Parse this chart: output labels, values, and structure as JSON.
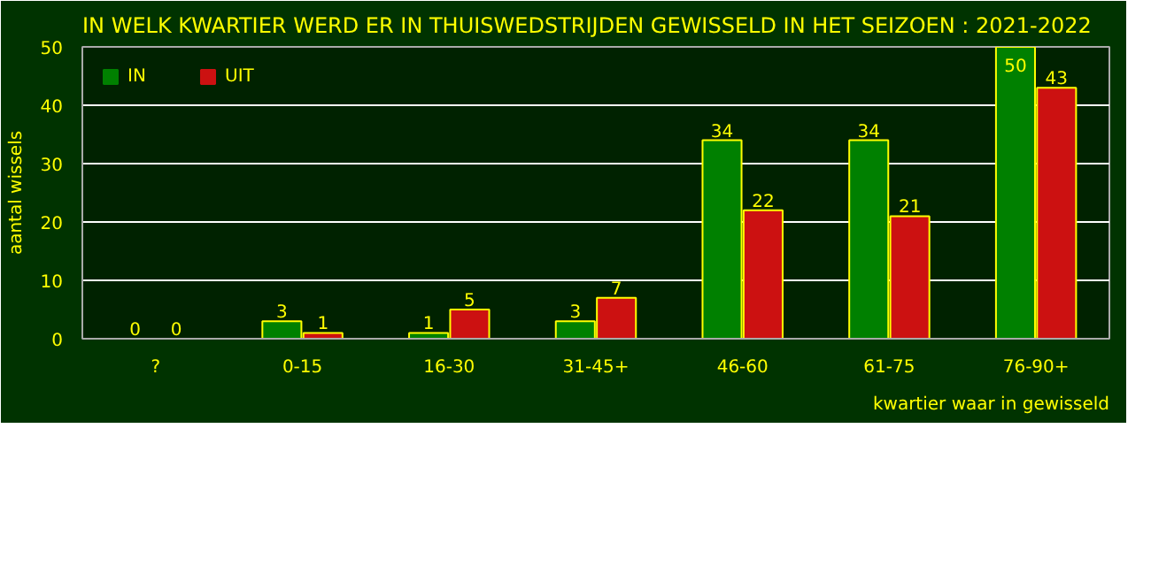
{
  "chart_data": {
    "type": "bar",
    "title": "IN WELK KWARTIER WERD ER IN THUISWEDSTRIJDEN GEWISSELD IN HET SEIZOEN : 2021-2022",
    "xlabel": "kwartier waar in gewisseld",
    "ylabel": "aantal wissels",
    "categories": [
      "?",
      "0-15",
      "16-30",
      "31-45+",
      "46-60",
      "61-75",
      "76-90+"
    ],
    "series": [
      {
        "name": "IN",
        "color": "#008000",
        "values": [
          0,
          3,
          1,
          3,
          34,
          34,
          50
        ]
      },
      {
        "name": "UIT",
        "color": "#cc1111",
        "values": [
          0,
          1,
          5,
          7,
          22,
          21,
          43
        ]
      }
    ],
    "ylim": [
      0,
      50
    ],
    "yticks": [
      0,
      10,
      20,
      30,
      40,
      50
    ],
    "grid": "y",
    "legend": "top left",
    "data_labels": true
  }
}
